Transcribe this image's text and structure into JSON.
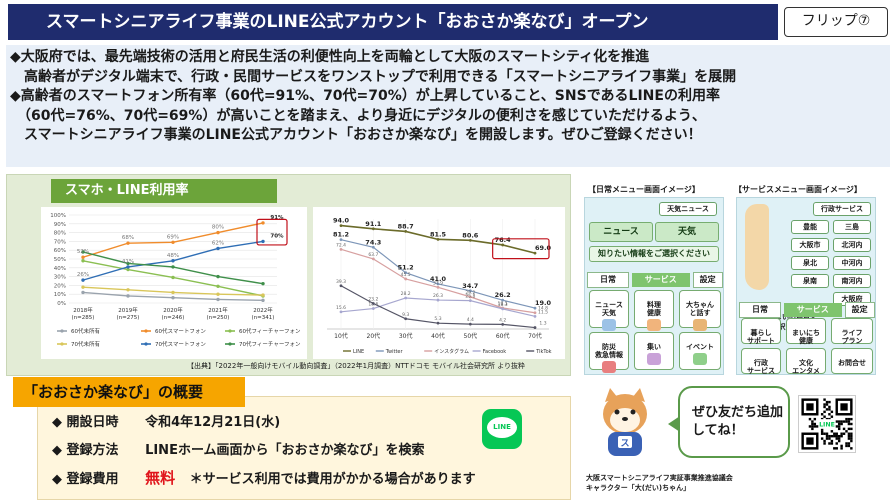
{
  "header": {
    "title": "スマートシニアライフ事業のLINE公式アカウント「おおさか楽なび」オープン",
    "flip_label": "フリップ⑦"
  },
  "intro": {
    "lines": [
      "◆大阪府では、最先端技術の活用と府民生活の利便性向上を両輪として大阪のスマートシティ化を推進",
      "　高齢者がデジタル端末で、行政・民間サービスをワンストップで利用できる「スマートシニアライフ事業」を展開",
      "◆高齢者のスマートフォン所有率（60代=91%、70代=70%）が上昇していること、SNSであるLINEの利用率",
      "　（60代=76%、70代=69%）が高いことを踏まえ、より身近にデジタルの便利さを感じていただけるよう、",
      "　スマートシニアライフ事業のLINE公式アカウント「おおさか楽なび」を開設します。ぜひご登録ください！"
    ]
  },
  "chart_section": {
    "title": "スマホ・LINE利用率",
    "source": "【出典】「2022年一般向けモバイル動向調査」（2022年1月調査）NTTドコモ モバイル社会研究所 より抜粋"
  },
  "chart_data": [
    {
      "type": "line",
      "categories": [
        "2018年\n(n=285)",
        "2019年\n(n=275)",
        "2020年\n(n=246)",
        "2021年\n(n=250)",
        "2022年\n(n=341)"
      ],
      "category_years": [
        "2018年",
        "2019年",
        "2020年",
        "2021年",
        "2022年"
      ],
      "category_n": [
        "(n=285)",
        "(n=275)",
        "(n=246)",
        "(n=250)",
        "(n=341)"
      ],
      "ylim": [
        0,
        100
      ],
      "yticks": [
        "0%",
        "10%",
        "20%",
        "30%",
        "40%",
        "50%",
        "60%",
        "70%",
        "80%",
        "90%",
        "100%"
      ],
      "series": [
        {
          "name": "60代未所有",
          "color": "#9aa3ad",
          "values": [
            12,
            8,
            6,
            4,
            3
          ]
        },
        {
          "name": "60代スマートフォン",
          "color": "#f08c2c",
          "values": [
            52,
            68,
            69,
            80,
            91
          ]
        },
        {
          "name": "60代フィーチャーフォン",
          "color": "#8bbf52",
          "values": [
            48,
            38,
            29,
            19,
            8
          ]
        },
        {
          "name": "70代未所有",
          "color": "#d9c65a",
          "values": [
            18,
            15,
            12,
            10,
            9
          ]
        },
        {
          "name": "70代スマートフォン",
          "color": "#2f6eb5",
          "values": [
            26,
            41,
            48,
            62,
            70
          ]
        },
        {
          "name": "70代フィーチャーフォン",
          "color": "#3f8f4a",
          "values": [
            58,
            45,
            41,
            30,
            22
          ]
        }
      ],
      "data_labels": [
        {
          "series": 1,
          "index": 0,
          "text": "52%"
        },
        {
          "series": 1,
          "index": 1,
          "text": "68%"
        },
        {
          "series": 1,
          "index": 2,
          "text": "69%"
        },
        {
          "series": 1,
          "index": 3,
          "text": "80%"
        },
        {
          "series": 1,
          "index": 4,
          "text": "91%"
        },
        {
          "series": 4,
          "index": 0,
          "text": "26%"
        },
        {
          "series": 4,
          "index": 1,
          "text": "41%"
        },
        {
          "series": 4,
          "index": 2,
          "text": "48%"
        },
        {
          "series": 4,
          "index": 3,
          "text": "62%"
        },
        {
          "series": 4,
          "index": 4,
          "text": "70%"
        }
      ]
    },
    {
      "type": "line",
      "categories": [
        "10代",
        "20代",
        "30代",
        "40代",
        "50代",
        "60代",
        "70代"
      ],
      "ylim": [
        0,
        100
      ],
      "series": [
        {
          "name": "LINE",
          "color": "#6b6b2a",
          "values": [
            94.0,
            91.1,
            88.7,
            81.5,
            80.6,
            76.4,
            69.0
          ],
          "labels": [
            "94.0",
            "91.1",
            "88.7",
            "81.5",
            "80.6",
            "76.4",
            "69.0"
          ]
        },
        {
          "name": "Twitter",
          "color": "#7d96b8",
          "values": [
            81.2,
            74.3,
            51.2,
            41.0,
            34.7,
            26.2,
            19.0
          ],
          "labels": [
            "81.2",
            "74.3",
            "51.2",
            "41.0",
            "34.7",
            "26.2",
            "19.0"
          ]
        },
        {
          "name": "インスタグラム",
          "color": "#d7a0a0",
          "values": [
            72.4,
            63.7,
            45.5,
            37.9,
            29.2,
            19.1,
            14.8
          ],
          "labels": [
            "72.4",
            "63.7",
            "45.5",
            "37.9",
            "29.2",
            "19.1",
            "14.8"
          ]
        },
        {
          "name": "Facebook",
          "color": "#a7a7cf",
          "values": [
            15.6,
            18.6,
            28.2,
            26.3,
            25.8,
            18.3,
            11.5
          ],
          "labels": [
            "15.6",
            "18.6",
            "28.2",
            "26.3",
            "25.8",
            "18.3",
            "11.5"
          ]
        },
        {
          "name": "TikTok",
          "color": "#555566",
          "values": [
            39.3,
            23.2,
            9.3,
            5.3,
            4.4,
            4.2,
            1.3
          ],
          "labels": [
            "39.3",
            "23.2",
            "9.3",
            "5.3",
            "4.4",
            "4.2",
            "1.3"
          ]
        }
      ]
    }
  ],
  "phones": {
    "daily": {
      "caption": "【日常メニュー画面イメージ】",
      "header_chip": "天気ニュース",
      "top_buttons": [
        "ニュース",
        "天気"
      ],
      "info_button": "知りたい情報をご選択ください",
      "tabs": [
        "日常",
        "サービス",
        "設定"
      ],
      "tiles": [
        "ニュース\n天気",
        "料理\n健康",
        "大ちゃん\nと話す",
        "防災\n救急情報",
        "集い",
        "イベント"
      ]
    },
    "service": {
      "caption": "【サービスメニュー画面イメージ】",
      "header_chip": "行政サービス",
      "cities": [
        "豊能",
        "三島",
        "大阪市",
        "北河内",
        "泉北",
        "中河内",
        "泉南",
        "南河内",
        "大阪府"
      ],
      "info_button": "お住まいの地域を\nご選択ください",
      "tabs": [
        "日常",
        "サービス",
        "設定"
      ],
      "tiles": [
        "暮らし\nサポート",
        "まいにち\n健康",
        "ライフ\nプラン",
        "行政\nサービス",
        "文化\nエンタメ",
        "お問合せ"
      ]
    }
  },
  "overview": {
    "title": "「おおさか楽なび」の概要",
    "rows": [
      {
        "bullet": "◆",
        "key": "開設日時",
        "value": "令和4年12月21日(水)"
      },
      {
        "bullet": "◆",
        "key": "登録方法",
        "value": "LINEホーム画面から「おおさか楽なび」を検索"
      },
      {
        "bullet": "◆",
        "key": "登録費用",
        "value": "無料",
        "note": "＊サービス利用では費用がかかる場合があります"
      }
    ],
    "line_logo_text": "LINE"
  },
  "mascot": {
    "balloon_text": "ぜひ友だち追加\nしてね！",
    "association": "大阪スマートシニアライフ実証事業推進協議会",
    "character": "キャラクター「大(だい)ちゃん」",
    "shirt_text": "ス"
  },
  "colors": {
    "title_band": "#1f2c6e",
    "intro_bg": "#e8eff8",
    "chart_title": "#6ca43a",
    "overview_title": "#f6a500",
    "free_red": "#e0151b",
    "line_green": "#06c755"
  }
}
